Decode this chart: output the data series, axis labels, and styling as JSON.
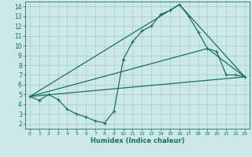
{
  "xlabel": "Humidex (Indice chaleur)",
  "bg_color": "#cce8e8",
  "grid_color": "#aad0d0",
  "line_color": "#1a7060",
  "xlim": [
    -0.5,
    23.5
  ],
  "ylim": [
    1.5,
    14.5
  ],
  "xticks": [
    0,
    1,
    2,
    3,
    4,
    5,
    6,
    7,
    8,
    9,
    10,
    11,
    12,
    13,
    14,
    15,
    16,
    17,
    18,
    19,
    20,
    21,
    22,
    23
  ],
  "yticks": [
    2,
    3,
    4,
    5,
    6,
    7,
    8,
    9,
    10,
    11,
    12,
    13,
    14
  ],
  "line1_x": [
    0,
    1,
    2,
    3,
    4,
    5,
    6,
    7,
    8,
    9,
    10,
    11,
    12,
    13,
    14,
    15,
    16,
    17,
    18,
    19,
    20,
    21,
    22,
    23
  ],
  "line1_y": [
    4.8,
    4.4,
    5.0,
    4.5,
    3.5,
    3.0,
    2.7,
    2.3,
    2.1,
    3.3,
    8.6,
    10.4,
    11.5,
    12.0,
    13.2,
    13.6,
    14.2,
    13.0,
    11.4,
    9.7,
    9.4,
    7.0,
    7.0,
    6.8
  ],
  "line2_x": [
    0,
    23
  ],
  "line2_y": [
    4.8,
    6.8
  ],
  "line3_x": [
    0,
    16,
    23
  ],
  "line3_y": [
    4.8,
    14.2,
    6.8
  ],
  "line4_x": [
    0,
    19,
    23
  ],
  "line4_y": [
    4.8,
    9.7,
    6.8
  ]
}
